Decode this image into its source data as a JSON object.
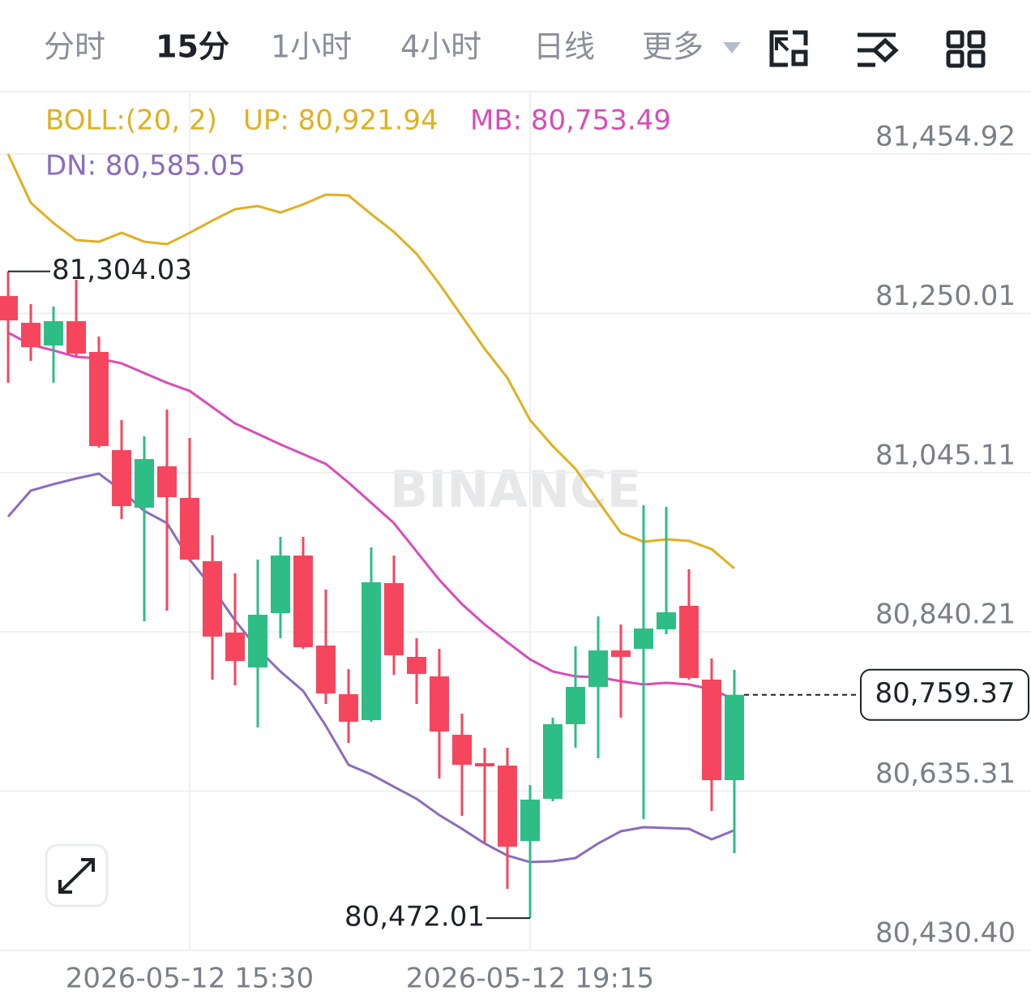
{
  "tabs": [
    "分时",
    "15分",
    "1小时",
    "4小时",
    "日线",
    "更多"
  ],
  "chart_data": {
    "type": "candlestick",
    "watermark": "BINANCE",
    "indicator": "BOLL:(20, 2)",
    "categories": [
      null,
      null,
      null,
      null,
      null,
      null,
      null,
      null,
      "2026-05-12 15:30",
      null,
      null,
      null,
      null,
      null,
      null,
      null,
      null,
      null,
      null,
      null,
      null,
      null,
      null,
      "2026-05-12 19:15",
      null,
      null,
      null,
      null,
      null,
      null,
      null,
      null,
      null
    ],
    "open": [
      81272.3,
      81237.9,
      81208.7,
      81240.0,
      81200.4,
      81074.1,
      81000.0,
      81053.3,
      81012.6,
      80931.2,
      80839.4,
      80794.5,
      80864.4,
      80938.5,
      80822.7,
      80760.1,
      80726.7,
      80903.0,
      80808.1,
      80783.0,
      80707.9,
      80671.4,
      80668.3,
      80571.2,
      80625.5,
      80721.5,
      80769.5,
      80816.4,
      80818.5,
      80843.5,
      80873.8,
      80778.9,
      80649.5
    ],
    "high": [
      81304.03,
      81261.9,
      81258.8,
      81293.2,
      81220.2,
      81112.7,
      81091.9,
      81126.3,
      81089.8,
      80964.6,
      80915.5,
      80933.3,
      80962.5,
      80962.5,
      80894.7,
      80792.4,
      80948.9,
      80938.5,
      80832.1,
      80818.5,
      80735.0,
      80691.2,
      80691.2,
      80643.2,
      80729.8,
      80821.6,
      80860.2,
      80849.8,
      81003.2,
      81001.1,
      80920.8,
      80806.0,
      80791.4
    ],
    "low": [
      81160.7,
      81188.9,
      81160.7,
      81194.1,
      81077.2,
      80985.4,
      80854.0,
      80867.5,
      80931.2,
      80778.9,
      80771.6,
      80717.3,
      80832.1,
      80818.5,
      80747.6,
      80697.5,
      80724.6,
      80785.1,
      80747.6,
      80651.6,
      80603.6,
      80568.1,
      80509.7,
      80472.01,
      80622.4,
      80691.2,
      80677.7,
      80729.8,
      80599.4,
      80837.3,
      80778.9,
      80609.9,
      80555.6
    ],
    "close": [
      81241.0,
      81206.6,
      81240.0,
      81198.3,
      81079.3,
      81002.1,
      81062.6,
      81013.6,
      80933.3,
      80834.2,
      80802.9,
      80862.3,
      80938.5,
      80820.6,
      80761.1,
      80724.6,
      80904.1,
      80810.2,
      80786.2,
      80712.1,
      80669.3,
      80667.2,
      80563.9,
      80624.5,
      80721.5,
      80769.5,
      80816.4,
      80808.1,
      80844.6,
      80865.5,
      80780.9,
      80649.5,
      80759.37
    ],
    "up_color": "#2ebd85",
    "down_color": "#f6465d",
    "series": [
      {
        "name": "UP: 80,921.94",
        "color": "#e0b020",
        "values": [
          81454.9,
          81392.3,
          81366.2,
          81344.3,
          81342.2,
          81353.7,
          81342.2,
          81339.1,
          81353.7,
          81369.4,
          81384.0,
          81388.1,
          81379.8,
          81390.2,
          81402.8,
          81401.7,
          81377.7,
          81354.8,
          81326.6,
          81288.0,
          81246.3,
          81204.5,
          81167.0,
          81112.7,
          81079.3,
          81050.1,
          81008.4,
          80967.7,
          80956.2,
          80959.4,
          80957.3,
          80946.8,
          80921.94
        ]
      },
      {
        "name": "MB: 80,753.49",
        "color": "#d94bb8",
        "values": [
          81225.4,
          81209.7,
          81202.4,
          81194.1,
          81192.0,
          81185.7,
          81173.2,
          81160.7,
          81150.3,
          81129.4,
          81108.5,
          81095.0,
          81081.4,
          81068.9,
          81056.4,
          81032.4,
          81006.3,
          80980.2,
          80943.7,
          80907.2,
          80875.9,
          80849.8,
          80826.9,
          80804.9,
          80789.3,
          80783.0,
          80782.0,
          80776.8,
          80772.6,
          80774.7,
          80772.6,
          80766.3,
          80753.49
        ]
      },
      {
        "name": "DN: 80,585.05",
        "color": "#8a6cc0",
        "values": [
          80988.6,
          81022.0,
          81030.3,
          81037.6,
          81043.9,
          81022.0,
          80995.9,
          80980.2,
          80933.3,
          80896.8,
          80855.0,
          80818.5,
          80789.3,
          80764.3,
          80719.4,
          80669.3,
          80656.8,
          80641.1,
          80625.5,
          80604.6,
          80586.9,
          80568.1,
          80552.5,
          80544.1,
          80545.2,
          80549.3,
          80568.1,
          80583.8,
          80589.0,
          80587.9,
          80586.9,
          80573.3,
          80585.05
        ]
      }
    ],
    "high_label": "81,304.03",
    "low_label": "80,472.01",
    "last_label": "80,759.37",
    "ylim": [
      80430.4,
      81533.2
    ],
    "yticks": [
      {
        "value": 80430.4,
        "label": "80,430.40"
      },
      {
        "value": 80635.31,
        "label": "80,635.31"
      },
      {
        "value": 80840.21,
        "label": "80,840.21"
      },
      {
        "value": 81045.11,
        "label": "81,045.11"
      },
      {
        "value": 81250.01,
        "label": "81,250.01"
      },
      {
        "value": 81454.92,
        "label": "81,454.92"
      }
    ],
    "grid": true
  }
}
